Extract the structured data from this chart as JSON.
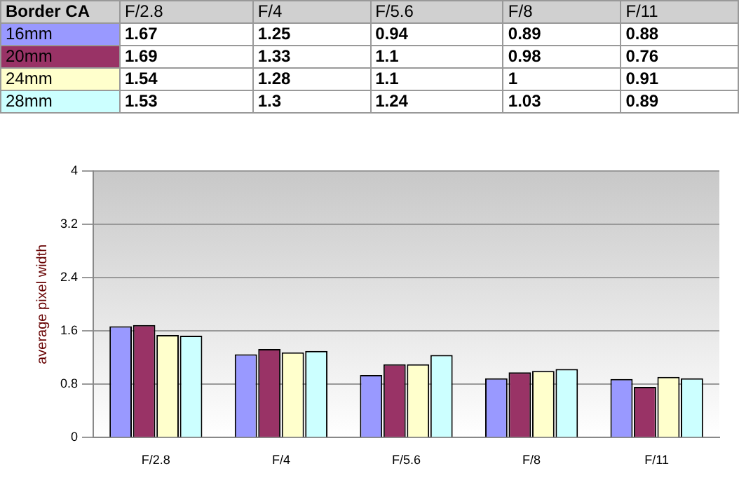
{
  "chart_data": {
    "type": "bar",
    "legend_title": "Border CA",
    "ylabel": "average pixel width",
    "categories": [
      "F/2.8",
      "F/4",
      "F/5.6",
      "F/8",
      "F/11"
    ],
    "series": [
      {
        "name": "16mm",
        "color": "#9999ff",
        "values": [
          1.67,
          1.25,
          0.94,
          0.89,
          0.88
        ]
      },
      {
        "name": "20mm",
        "color": "#993366",
        "values": [
          1.69,
          1.33,
          1.1,
          0.98,
          0.76
        ]
      },
      {
        "name": "24mm",
        "color": "#ffffcc",
        "values": [
          1.54,
          1.28,
          1.1,
          1,
          0.91
        ]
      },
      {
        "name": "28mm",
        "color": "#ccffff",
        "values": [
          1.53,
          1.3,
          1.24,
          1.03,
          0.89
        ]
      }
    ],
    "ylim": [
      0,
      4
    ],
    "yticks": [
      0,
      0.8,
      1.6,
      2.4,
      3.2,
      4
    ],
    "grid": "y",
    "legend": "top",
    "data_labels": true
  }
}
